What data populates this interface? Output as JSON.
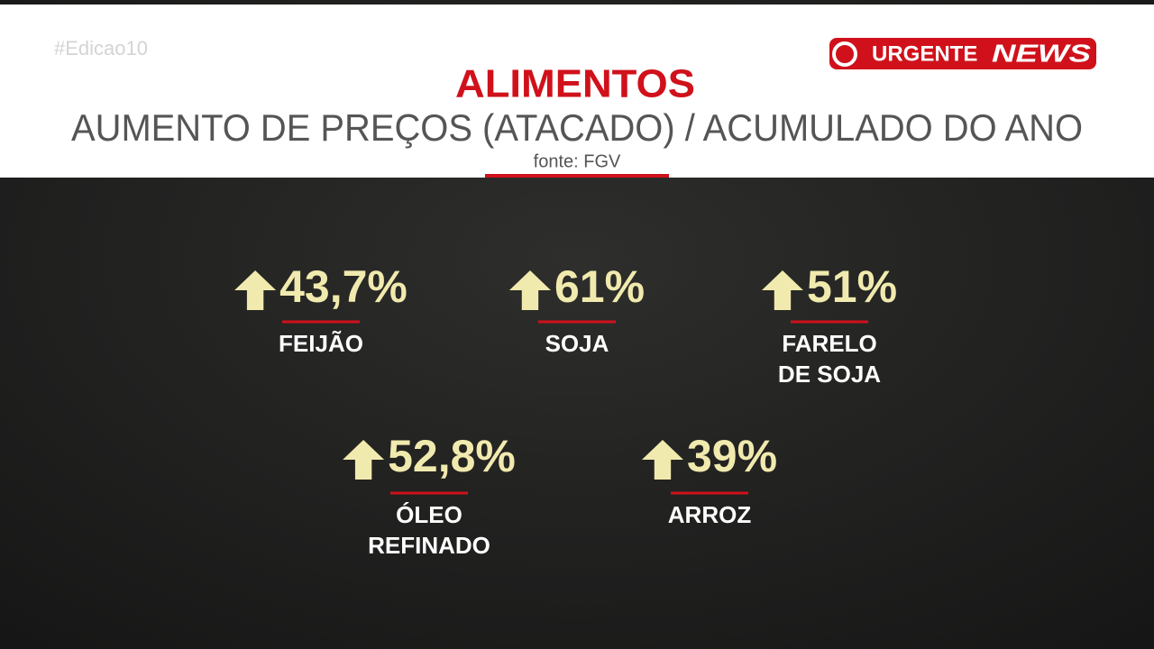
{
  "hashtag": "#Edicao10",
  "badge": {
    "left": "URGENTE",
    "right": "NEWS"
  },
  "header": {
    "title": "ALIMENTOS",
    "subtitle": "AUMENTO DE PREÇOS (ATACADO) / ACUMULADO DO ANO",
    "source": "fonte: FGV"
  },
  "items": [
    {
      "value": "43,7%",
      "label": [
        "FEIJÃO"
      ]
    },
    {
      "value": "61%",
      "label": [
        "SOJA"
      ]
    },
    {
      "value": "51%",
      "label": [
        "FARELO",
        "DE SOJA"
      ]
    },
    {
      "value": "52,8%",
      "label": [
        "ÓLEO",
        "REFINADO"
      ]
    },
    {
      "value": "39%",
      "label": [
        "ARROZ"
      ]
    }
  ]
}
